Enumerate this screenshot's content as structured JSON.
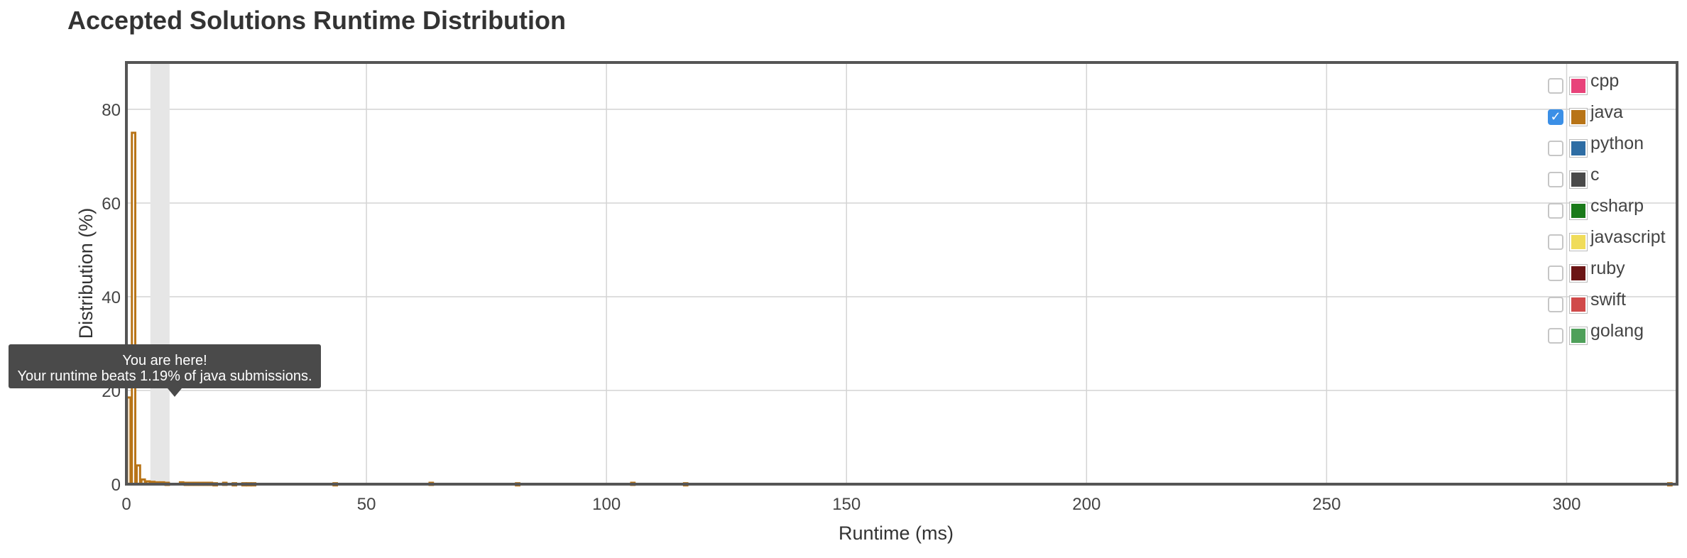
{
  "page": {
    "title": "Accepted Solutions Runtime Distribution"
  },
  "chart_data": {
    "type": "bar",
    "title": "Accepted Solutions Runtime Distribution",
    "xlabel": "Runtime (ms)",
    "ylabel": "Distribution (%)",
    "xlim": [
      0,
      323
    ],
    "ylim": [
      0,
      90
    ],
    "x_ticks": [
      0,
      50,
      100,
      150,
      200,
      250,
      300
    ],
    "y_ticks": [
      0,
      20,
      40,
      60,
      80
    ],
    "grid": true,
    "legend_placement": "top-right",
    "highlight_range": [
      5,
      9
    ],
    "series": [
      {
        "name": "java",
        "color": "#b87417",
        "x": [
          0,
          1,
          2,
          3,
          4,
          5,
          6,
          7,
          8,
          11,
          12,
          13,
          14,
          15,
          16,
          17,
          18,
          20,
          22,
          24,
          25,
          26,
          43,
          63,
          81,
          105,
          116,
          321
        ],
        "values": [
          18.5,
          75,
          4,
          1,
          0.6,
          0.5,
          0.4,
          0.4,
          0.3,
          0.4,
          0.3,
          0.3,
          0.3,
          0.3,
          0.3,
          0.3,
          0.2,
          0.3,
          0.2,
          0.2,
          0.2,
          0.2,
          0.2,
          0.3,
          0.2,
          0.3,
          0.2,
          0.2
        ]
      }
    ]
  },
  "legend": [
    {
      "label": "cpp",
      "color": "#e8437a",
      "checked": false
    },
    {
      "label": "java",
      "color": "#b87417",
      "checked": true
    },
    {
      "label": "python",
      "color": "#2e6da4",
      "checked": false
    },
    {
      "label": "c",
      "color": "#4a4a4a",
      "checked": false
    },
    {
      "label": "csharp",
      "color": "#1a7a1a",
      "checked": false
    },
    {
      "label": "javascript",
      "color": "#f0dc5a",
      "checked": false
    },
    {
      "label": "ruby",
      "color": "#6b1515",
      "checked": false
    },
    {
      "label": "swift",
      "color": "#d04a4a",
      "checked": false
    },
    {
      "label": "golang",
      "color": "#4fa05a",
      "checked": false
    }
  ],
  "tooltip": {
    "line1": "You are here!",
    "line2": "Your runtime beats 1.19% of java submissions."
  }
}
